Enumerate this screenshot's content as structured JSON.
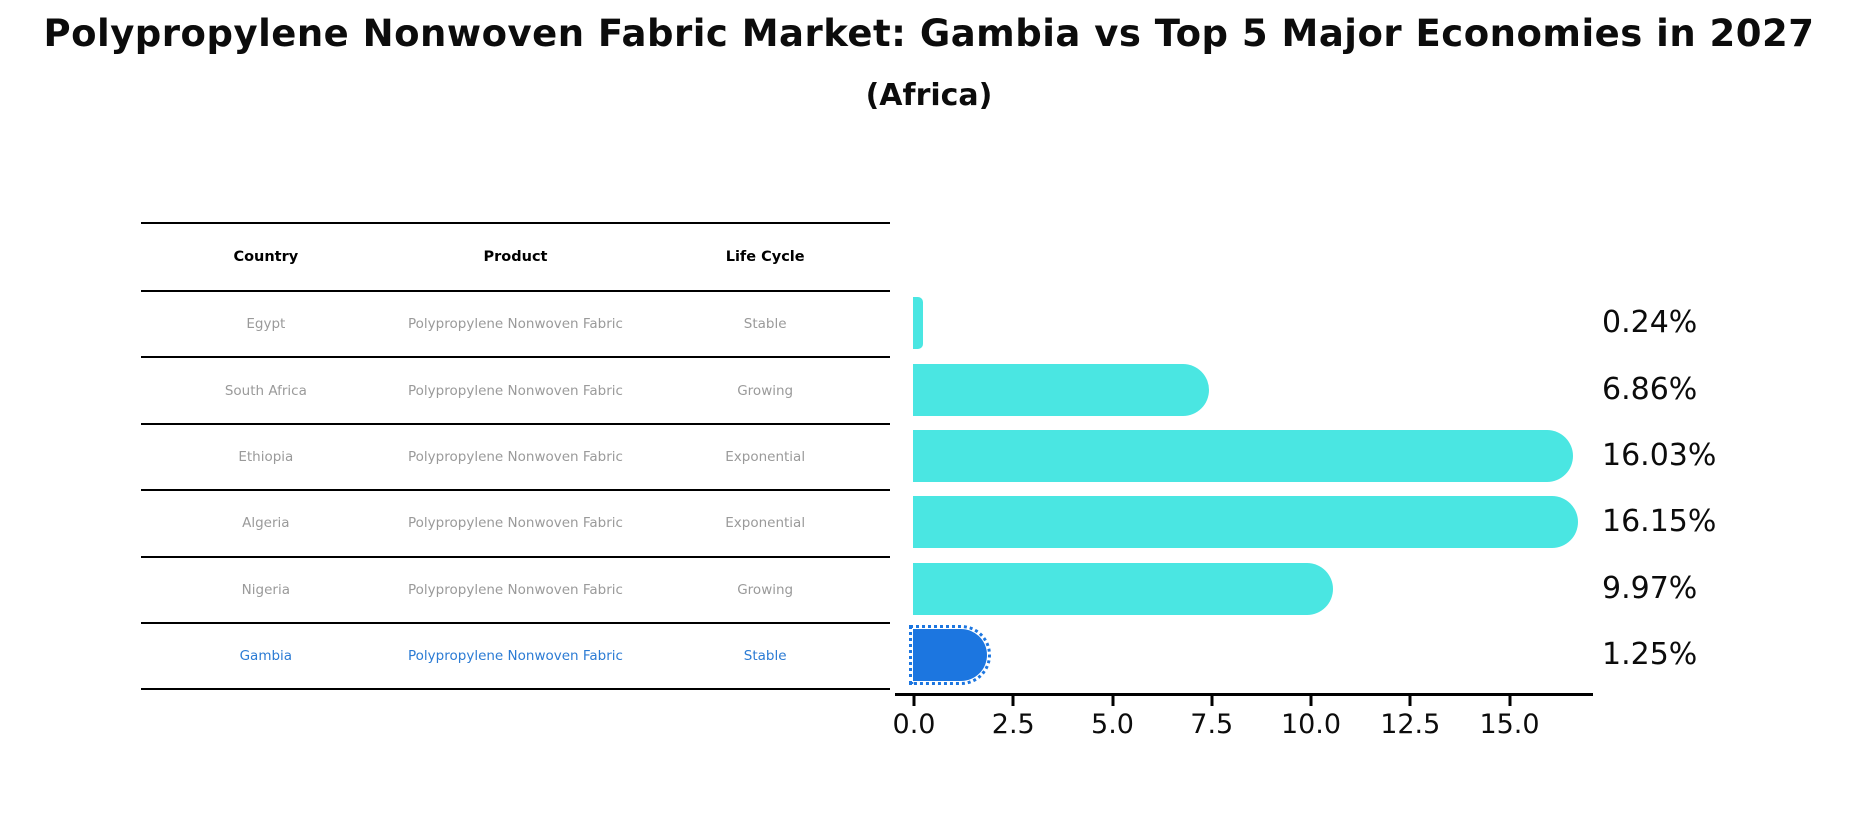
{
  "title": "Polypropylene Nonwoven Fabric Market: Gambia vs Top 5 Major Economies in 2027",
  "subtitle": "(Africa)",
  "table": {
    "columns": [
      "Country",
      "Product",
      "Life Cycle"
    ],
    "rows": [
      {
        "country": "Egypt",
        "product": "Polypropylene Nonwoven Fabric",
        "life_cycle": "Stable",
        "share": 0.24,
        "share_label": "0.24%",
        "highlight": false
      },
      {
        "country": "South Africa",
        "product": "Polypropylene Nonwoven Fabric",
        "life_cycle": "Growing",
        "share": 6.86,
        "share_label": "6.86%",
        "highlight": false
      },
      {
        "country": "Ethiopia",
        "product": "Polypropylene Nonwoven Fabric",
        "life_cycle": "Exponential",
        "share": 16.03,
        "share_label": "16.03%",
        "highlight": false
      },
      {
        "country": "Algeria",
        "product": "Polypropylene Nonwoven Fabric",
        "life_cycle": "Exponential",
        "share": 16.15,
        "share_label": "16.15%",
        "highlight": false
      },
      {
        "country": "Nigeria",
        "product": "Polypropylene Nonwoven Fabric",
        "life_cycle": "Growing",
        "share": 9.97,
        "share_label": "9.97%",
        "highlight": false
      },
      {
        "country": "Gambia",
        "product": "Polypropylene Nonwoven Fabric",
        "life_cycle": "Stable",
        "share": 1.25,
        "share_label": "1.25%",
        "highlight": true
      }
    ]
  },
  "chart_data": {
    "type": "bar",
    "orientation": "horizontal",
    "title": "Polypropylene Nonwoven Fabric Market: Gambia vs Top 5 Major Economies in 2027",
    "subtitle": "(Africa)",
    "categories": [
      "Egypt",
      "South Africa",
      "Ethiopia",
      "Algeria",
      "Nigeria",
      "Gambia"
    ],
    "values": [
      0.24,
      6.86,
      16.03,
      16.15,
      9.97,
      1.25
    ],
    "value_labels": [
      "0.24%",
      "6.86%",
      "16.03%",
      "16.15%",
      "9.97%",
      "1.25%"
    ],
    "x_ticks": [
      0.0,
      2.5,
      5.0,
      7.5,
      10.0,
      12.5,
      15.0
    ],
    "x_tick_labels": [
      "0.0",
      "2.5",
      "5.0",
      "7.5",
      "10.0",
      "12.5",
      "15.0"
    ],
    "xlim": [
      0,
      17.1
    ],
    "grid": false,
    "legend": false,
    "highlight_category": "Gambia",
    "bar_color": "#4ae6e2",
    "highlight_bar_color": "#1c76e0"
  },
  "colors": {
    "bar_cyan": "#4ae6e2",
    "bar_blue": "#1c76e0",
    "highlight_text": "#2b7bd4",
    "row_text": "#9a9a9a",
    "header_text": "#000000",
    "axis": "#000000"
  }
}
